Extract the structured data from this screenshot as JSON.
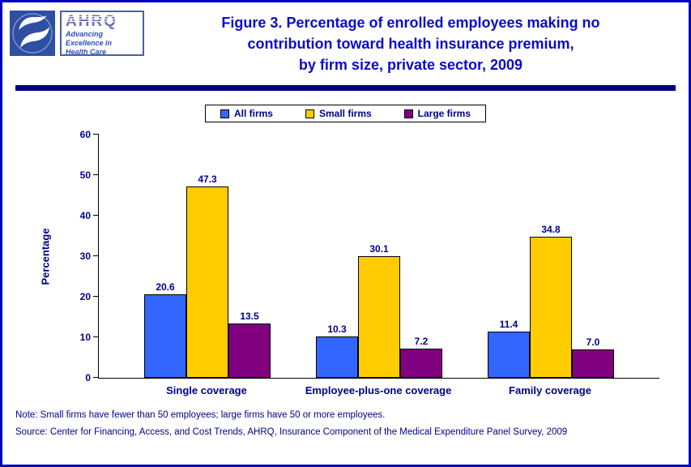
{
  "header": {
    "title_lines": [
      "Figure 3. Percentage of enrolled employees making no",
      "contribution toward health insurance premium,",
      "by firm size, private sector, 2009"
    ],
    "ahrq_logo": {
      "acronym": "AHRQ",
      "tagline_lines": [
        "Advancing",
        "Excellence in",
        "Health Care"
      ]
    },
    "icons": {
      "hhs_logo": "hhs-eagle-seal"
    }
  },
  "chart_data": {
    "type": "bar",
    "title": "Figure 3. Percentage of enrolled employees making no contribution toward health insurance premium, by firm size, private sector, 2009",
    "categories": [
      "Single coverage",
      "Employee-plus-one coverage",
      "Family coverage"
    ],
    "series": [
      {
        "name": "All firms",
        "color": "#3366FF",
        "values": [
          20.6,
          10.3,
          11.4
        ]
      },
      {
        "name": "Small firms",
        "color": "#FFCC00",
        "values": [
          47.3,
          30.1,
          34.8
        ]
      },
      {
        "name": "Large firms",
        "color": "#800080",
        "values": [
          13.5,
          7.2,
          7.0
        ]
      }
    ],
    "xlabel": "",
    "ylabel": "Percentage",
    "ylim": [
      0,
      60
    ],
    "ytick_step": 10,
    "grid": false,
    "legend_position": "top"
  },
  "notes": {
    "note": "Note: Small firms have fewer than 50 employees; large firms have 50 or more employees.",
    "source": "Source: Center for Financing, Access, and Cost Trends, AHRQ, Insurance Component of the Medical Expenditure Panel Survey, 2009"
  },
  "colors": {
    "page_border": "#0000C0",
    "title_text": "#0A0ACC",
    "axis_text": "#00008B",
    "divider": "#000080"
  }
}
